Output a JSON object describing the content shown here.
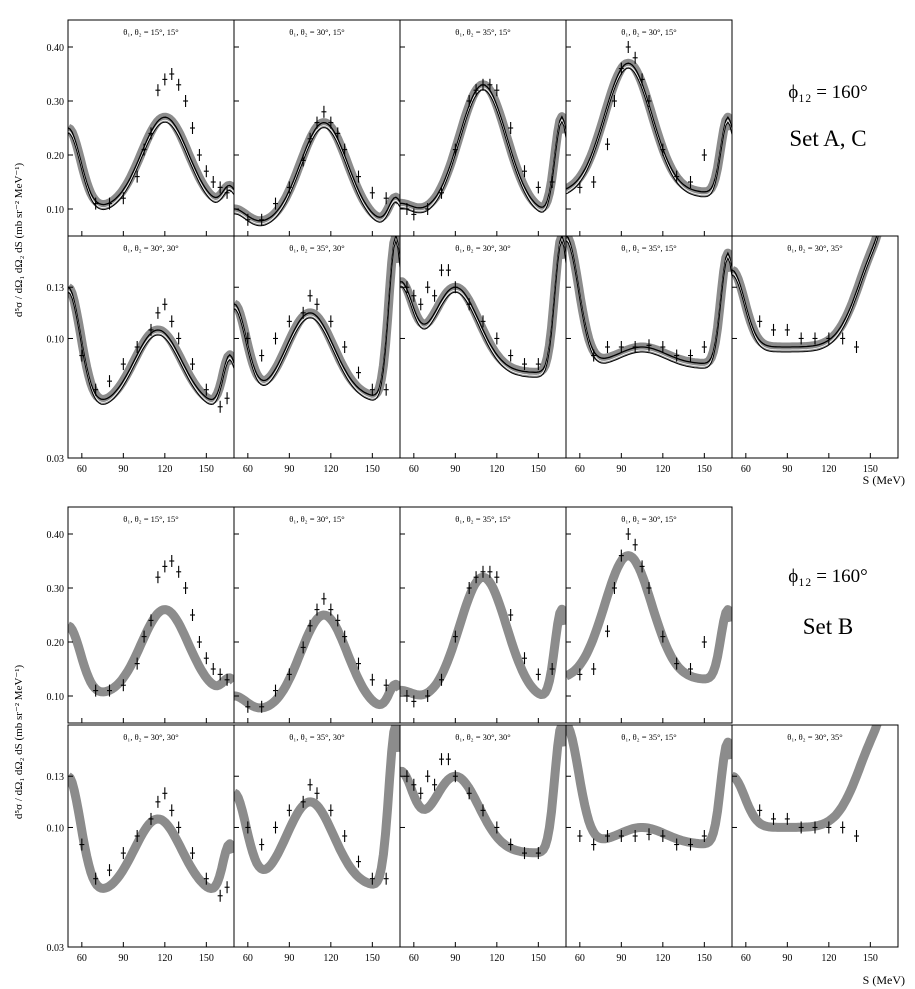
{
  "figure": {
    "ylabel": "d⁵σ / dΩ₁ dΩ₂ dS (mb sr⁻² MeV⁻¹)",
    "xlabel": "S (MeV)",
    "x_ticks": [
      "60",
      "90",
      "120",
      "150"
    ],
    "top_y_ticks": [
      "0.10",
      "0.20",
      "0.30",
      "0.40"
    ],
    "bottom_y_ticks": [
      "0.03",
      "0.10",
      "0.13"
    ],
    "colors": {
      "axis": "#000000",
      "band": "#8c8c8c",
      "line": "#000000",
      "points": "#000000"
    }
  },
  "groups": [
    {
      "phi_label": "ϕ₁₂ = 160°",
      "set_label": "Set A, C"
    },
    {
      "phi_label": "ϕ₁₂ = 160°",
      "set_label": "Set B"
    }
  ],
  "chart_data": [
    {
      "type": "line",
      "group": 0,
      "row": 0,
      "col": 0,
      "title": "θ₁, θ₂ = 15°, 15°",
      "x_range": [
        50,
        170
      ],
      "y_range": [
        0.05,
        0.45
      ],
      "curve_peak": 0.27,
      "curve_peak_x": 120,
      "edge_left": 0.25,
      "edge_right": 0.14,
      "minimum": 0.1,
      "points": [
        [
          70,
          0.11
        ],
        [
          80,
          0.11
        ],
        [
          90,
          0.12
        ],
        [
          100,
          0.16
        ],
        [
          105,
          0.21
        ],
        [
          110,
          0.24
        ],
        [
          115,
          0.32
        ],
        [
          120,
          0.34
        ],
        [
          125,
          0.35
        ],
        [
          130,
          0.33
        ],
        [
          135,
          0.3
        ],
        [
          140,
          0.25
        ],
        [
          145,
          0.2
        ],
        [
          150,
          0.17
        ],
        [
          155,
          0.15
        ],
        [
          160,
          0.14
        ],
        [
          165,
          0.13
        ]
      ]
    },
    {
      "type": "line",
      "group": 0,
      "row": 0,
      "col": 1,
      "title": "θ₁, θ₂ = 30°, 15°",
      "x_range": [
        50,
        170
      ],
      "y_range": [
        0.05,
        0.45
      ],
      "curve_peak": 0.26,
      "curve_peak_x": 115,
      "edge_left": 0.1,
      "edge_right": 0.12,
      "minimum": 0.07,
      "points": [
        [
          60,
          0.08
        ],
        [
          70,
          0.08
        ],
        [
          80,
          0.11
        ],
        [
          90,
          0.14
        ],
        [
          100,
          0.19
        ],
        [
          105,
          0.23
        ],
        [
          110,
          0.26
        ],
        [
          115,
          0.28
        ],
        [
          120,
          0.26
        ],
        [
          125,
          0.24
        ],
        [
          130,
          0.21
        ],
        [
          140,
          0.16
        ],
        [
          150,
          0.13
        ],
        [
          160,
          0.12
        ]
      ]
    },
    {
      "type": "line",
      "group": 0,
      "row": 0,
      "col": 2,
      "title": "θ₁, θ₂ = 35°, 15°",
      "x_range": [
        50,
        170
      ],
      "y_range": [
        0.05,
        0.45
      ],
      "curve_peak": 0.33,
      "curve_peak_x": 110,
      "edge_left": 0.11,
      "edge_right": 0.27,
      "minimum": 0.09,
      "points": [
        [
          55,
          0.1
        ],
        [
          60,
          0.09
        ],
        [
          70,
          0.1
        ],
        [
          80,
          0.13
        ],
        [
          90,
          0.21
        ],
        [
          100,
          0.3
        ],
        [
          105,
          0.32
        ],
        [
          110,
          0.33
        ],
        [
          115,
          0.33
        ],
        [
          120,
          0.32
        ],
        [
          130,
          0.25
        ],
        [
          140,
          0.17
        ],
        [
          150,
          0.14
        ],
        [
          160,
          0.15
        ]
      ]
    },
    {
      "type": "line",
      "group": 0,
      "row": 0,
      "col": 3,
      "title": "θ₁, θ₂ = 30°, 15°",
      "x_range": [
        50,
        170
      ],
      "y_range": [
        0.05,
        0.45
      ],
      "curve_peak": 0.37,
      "curve_peak_x": 95,
      "edge_left": 0.13,
      "edge_right": 0.27,
      "minimum": 0.13,
      "points": [
        [
          60,
          0.14
        ],
        [
          70,
          0.15
        ],
        [
          80,
          0.22
        ],
        [
          85,
          0.3
        ],
        [
          90,
          0.36
        ],
        [
          95,
          0.4
        ],
        [
          100,
          0.38
        ],
        [
          105,
          0.34
        ],
        [
          110,
          0.3
        ],
        [
          120,
          0.21
        ],
        [
          130,
          0.16
        ],
        [
          140,
          0.15
        ],
        [
          150,
          0.2
        ]
      ]
    },
    {
      "type": "line",
      "group": 0,
      "row": 1,
      "col": 0,
      "title": "θ₁, θ₂ = 30°, 30°",
      "x_range": [
        50,
        170
      ],
      "y_range": [
        0.03,
        0.16
      ],
      "curve_peak": 0.105,
      "curve_peak_x": 115,
      "edge_left": 0.13,
      "edge_right": 0.09,
      "minimum": 0.06,
      "points": [
        [
          60,
          0.09
        ],
        [
          70,
          0.07
        ],
        [
          80,
          0.075
        ],
        [
          90,
          0.085
        ],
        [
          100,
          0.095
        ],
        [
          110,
          0.105
        ],
        [
          115,
          0.115
        ],
        [
          120,
          0.12
        ],
        [
          125,
          0.11
        ],
        [
          130,
          0.1
        ],
        [
          140,
          0.085
        ],
        [
          150,
          0.07
        ],
        [
          160,
          0.06
        ],
        [
          165,
          0.065
        ]
      ]
    },
    {
      "type": "line",
      "group": 0,
      "row": 1,
      "col": 1,
      "title": "θ₁, θ₂ = 35°, 30°",
      "x_range": [
        50,
        170
      ],
      "y_range": [
        0.03,
        0.16
      ],
      "curve_peak": 0.115,
      "curve_peak_x": 105,
      "edge_left": 0.12,
      "edge_right": 0.16,
      "minimum": 0.065,
      "points": [
        [
          60,
          0.1
        ],
        [
          70,
          0.09
        ],
        [
          80,
          0.1
        ],
        [
          90,
          0.11
        ],
        [
          100,
          0.115
        ],
        [
          105,
          0.125
        ],
        [
          110,
          0.12
        ],
        [
          120,
          0.11
        ],
        [
          130,
          0.095
        ],
        [
          140,
          0.08
        ],
        [
          150,
          0.07
        ],
        [
          160,
          0.07
        ]
      ]
    },
    {
      "type": "line",
      "group": 0,
      "row": 1,
      "col": 2,
      "title": "θ₁, θ₂ = 30°, 30°",
      "x_range": [
        50,
        170
      ],
      "y_range": [
        0.03,
        0.16
      ],
      "curve_peak": 0.13,
      "curve_peak_x": 90,
      "edge_left": 0.13,
      "edge_right": 0.16,
      "minimum": 0.08,
      "points": [
        [
          55,
          0.13
        ],
        [
          60,
          0.125
        ],
        [
          65,
          0.12
        ],
        [
          70,
          0.13
        ],
        [
          75,
          0.125
        ],
        [
          80,
          0.14
        ],
        [
          85,
          0.14
        ],
        [
          90,
          0.13
        ],
        [
          100,
          0.12
        ],
        [
          110,
          0.11
        ],
        [
          120,
          0.1
        ],
        [
          130,
          0.09
        ],
        [
          140,
          0.085
        ],
        [
          150,
          0.085
        ]
      ]
    },
    {
      "type": "line",
      "group": 0,
      "row": 1,
      "col": 3,
      "title": "θ₁, θ₂ = 35°, 15°",
      "x_range": [
        50,
        170
      ],
      "y_range": [
        0.03,
        0.16
      ],
      "curve_peak": 0.095,
      "curve_peak_x": 105,
      "edge_left": 0.16,
      "edge_right": 0.15,
      "minimum": 0.085,
      "points": [
        [
          70,
          0.09
        ],
        [
          80,
          0.095
        ],
        [
          90,
          0.095
        ],
        [
          100,
          0.095
        ],
        [
          110,
          0.096
        ],
        [
          120,
          0.095
        ],
        [
          130,
          0.09
        ],
        [
          140,
          0.09
        ],
        [
          150,
          0.095
        ]
      ]
    },
    {
      "type": "line",
      "group": 0,
      "row": 1,
      "col": 4,
      "title": "θ₁, θ₂ = 30°, 35°",
      "x_range": [
        50,
        170
      ],
      "y_range": [
        0.03,
        0.16
      ],
      "curve_peak": 0.16,
      "curve_peak_x": 160,
      "edge_left": 0.14,
      "edge_right": 0.16,
      "minimum": 0.095,
      "points": [
        [
          70,
          0.11
        ],
        [
          80,
          0.105
        ],
        [
          90,
          0.105
        ],
        [
          100,
          0.1
        ],
        [
          110,
          0.1
        ],
        [
          120,
          0.1
        ],
        [
          130,
          0.1
        ],
        [
          140,
          0.095
        ]
      ]
    },
    {
      "type": "line",
      "group": 1,
      "row": 0,
      "col": 0,
      "title": "θ₁, θ₂ = 15°, 15°",
      "x_range": [
        50,
        170
      ],
      "y_range": [
        0.05,
        0.45
      ],
      "curve_peak": 0.26,
      "curve_peak_x": 120,
      "edge_left": 0.23,
      "edge_right": 0.13,
      "minimum": 0.1,
      "points": [
        [
          70,
          0.11
        ],
        [
          80,
          0.11
        ],
        [
          90,
          0.12
        ],
        [
          100,
          0.16
        ],
        [
          105,
          0.21
        ],
        [
          110,
          0.24
        ],
        [
          115,
          0.32
        ],
        [
          120,
          0.34
        ],
        [
          125,
          0.35
        ],
        [
          130,
          0.33
        ],
        [
          135,
          0.3
        ],
        [
          140,
          0.25
        ],
        [
          145,
          0.2
        ],
        [
          150,
          0.17
        ],
        [
          155,
          0.15
        ],
        [
          160,
          0.14
        ],
        [
          165,
          0.13
        ]
      ]
    },
    {
      "type": "line",
      "group": 1,
      "row": 0,
      "col": 1,
      "title": "θ₁, θ₂ = 30°, 15°",
      "x_range": [
        50,
        170
      ],
      "y_range": [
        0.05,
        0.45
      ],
      "curve_peak": 0.25,
      "curve_peak_x": 115,
      "edge_left": 0.1,
      "edge_right": 0.12,
      "minimum": 0.07,
      "points": [
        [
          60,
          0.08
        ],
        [
          70,
          0.08
        ],
        [
          80,
          0.11
        ],
        [
          90,
          0.14
        ],
        [
          100,
          0.19
        ],
        [
          105,
          0.23
        ],
        [
          110,
          0.26
        ],
        [
          115,
          0.28
        ],
        [
          120,
          0.26
        ],
        [
          125,
          0.24
        ],
        [
          130,
          0.21
        ],
        [
          140,
          0.16
        ],
        [
          150,
          0.13
        ],
        [
          160,
          0.12
        ]
      ]
    },
    {
      "type": "line",
      "group": 1,
      "row": 0,
      "col": 2,
      "title": "θ₁, θ₂ = 35°, 15°",
      "x_range": [
        50,
        170
      ],
      "y_range": [
        0.05,
        0.45
      ],
      "curve_peak": 0.32,
      "curve_peak_x": 110,
      "edge_left": 0.11,
      "edge_right": 0.26,
      "minimum": 0.09,
      "points": [
        [
          55,
          0.1
        ],
        [
          60,
          0.09
        ],
        [
          70,
          0.1
        ],
        [
          80,
          0.13
        ],
        [
          90,
          0.21
        ],
        [
          100,
          0.3
        ],
        [
          105,
          0.32
        ],
        [
          110,
          0.33
        ],
        [
          115,
          0.33
        ],
        [
          120,
          0.32
        ],
        [
          130,
          0.25
        ],
        [
          140,
          0.17
        ],
        [
          150,
          0.14
        ],
        [
          160,
          0.15
        ]
      ]
    },
    {
      "type": "line",
      "group": 1,
      "row": 0,
      "col": 3,
      "title": "θ₁, θ₂ = 30°, 15°",
      "x_range": [
        50,
        170
      ],
      "y_range": [
        0.05,
        0.45
      ],
      "curve_peak": 0.36,
      "curve_peak_x": 95,
      "edge_left": 0.13,
      "edge_right": 0.26,
      "minimum": 0.13,
      "points": [
        [
          60,
          0.14
        ],
        [
          70,
          0.15
        ],
        [
          80,
          0.22
        ],
        [
          85,
          0.3
        ],
        [
          90,
          0.36
        ],
        [
          95,
          0.4
        ],
        [
          100,
          0.38
        ],
        [
          105,
          0.34
        ],
        [
          110,
          0.3
        ],
        [
          120,
          0.21
        ],
        [
          130,
          0.16
        ],
        [
          140,
          0.15
        ],
        [
          150,
          0.2
        ]
      ]
    },
    {
      "type": "line",
      "group": 1,
      "row": 1,
      "col": 0,
      "title": "θ₁, θ₂ = 30°, 30°",
      "x_range": [
        50,
        170
      ],
      "y_range": [
        0.03,
        0.16
      ],
      "curve_peak": 0.105,
      "curve_peak_x": 115,
      "edge_left": 0.13,
      "edge_right": 0.09,
      "minimum": 0.06,
      "points": [
        [
          60,
          0.09
        ],
        [
          70,
          0.07
        ],
        [
          80,
          0.075
        ],
        [
          90,
          0.085
        ],
        [
          100,
          0.095
        ],
        [
          110,
          0.105
        ],
        [
          115,
          0.115
        ],
        [
          120,
          0.12
        ],
        [
          125,
          0.11
        ],
        [
          130,
          0.1
        ],
        [
          140,
          0.085
        ],
        [
          150,
          0.07
        ],
        [
          160,
          0.06
        ],
        [
          165,
          0.065
        ]
      ]
    },
    {
      "type": "line",
      "group": 1,
      "row": 1,
      "col": 1,
      "title": "θ₁, θ₂ = 35°, 30°",
      "x_range": [
        50,
        170
      ],
      "y_range": [
        0.03,
        0.16
      ],
      "curve_peak": 0.115,
      "curve_peak_x": 105,
      "edge_left": 0.12,
      "edge_right": 0.16,
      "minimum": 0.065,
      "points": [
        [
          60,
          0.1
        ],
        [
          70,
          0.09
        ],
        [
          80,
          0.1
        ],
        [
          90,
          0.11
        ],
        [
          100,
          0.115
        ],
        [
          105,
          0.125
        ],
        [
          110,
          0.12
        ],
        [
          120,
          0.11
        ],
        [
          130,
          0.095
        ],
        [
          140,
          0.08
        ],
        [
          150,
          0.07
        ],
        [
          160,
          0.07
        ]
      ]
    },
    {
      "type": "line",
      "group": 1,
      "row": 1,
      "col": 2,
      "title": "θ₁, θ₂ = 30°, 30°",
      "x_range": [
        50,
        170
      ],
      "y_range": [
        0.03,
        0.16
      ],
      "curve_peak": 0.13,
      "curve_peak_x": 90,
      "edge_left": 0.13,
      "edge_right": 0.16,
      "minimum": 0.085,
      "points": [
        [
          55,
          0.13
        ],
        [
          60,
          0.125
        ],
        [
          65,
          0.12
        ],
        [
          70,
          0.13
        ],
        [
          75,
          0.125
        ],
        [
          80,
          0.14
        ],
        [
          85,
          0.14
        ],
        [
          90,
          0.13
        ],
        [
          100,
          0.12
        ],
        [
          110,
          0.11
        ],
        [
          120,
          0.1
        ],
        [
          130,
          0.09
        ],
        [
          140,
          0.085
        ],
        [
          150,
          0.085
        ]
      ]
    },
    {
      "type": "line",
      "group": 1,
      "row": 1,
      "col": 3,
      "title": "θ₁, θ₂ = 35°, 15°",
      "x_range": [
        50,
        170
      ],
      "y_range": [
        0.03,
        0.16
      ],
      "curve_peak": 0.1,
      "curve_peak_x": 105,
      "edge_left": 0.16,
      "edge_right": 0.15,
      "minimum": 0.09,
      "points": [
        [
          60,
          0.095
        ],
        [
          70,
          0.09
        ],
        [
          80,
          0.095
        ],
        [
          90,
          0.095
        ],
        [
          100,
          0.095
        ],
        [
          110,
          0.096
        ],
        [
          120,
          0.095
        ],
        [
          130,
          0.09
        ],
        [
          140,
          0.09
        ],
        [
          150,
          0.095
        ]
      ]
    },
    {
      "type": "line",
      "group": 1,
      "row": 1,
      "col": 4,
      "title": "θ₁, θ₂ = 30°, 35°",
      "x_range": [
        50,
        170
      ],
      "y_range": [
        0.03,
        0.16
      ],
      "curve_peak": 0.16,
      "curve_peak_x": 160,
      "edge_left": 0.13,
      "edge_right": 0.16,
      "minimum": 0.1,
      "points": [
        [
          70,
          0.11
        ],
        [
          80,
          0.105
        ],
        [
          90,
          0.105
        ],
        [
          100,
          0.1
        ],
        [
          110,
          0.1
        ],
        [
          120,
          0.1
        ],
        [
          130,
          0.1
        ],
        [
          140,
          0.095
        ]
      ]
    }
  ]
}
